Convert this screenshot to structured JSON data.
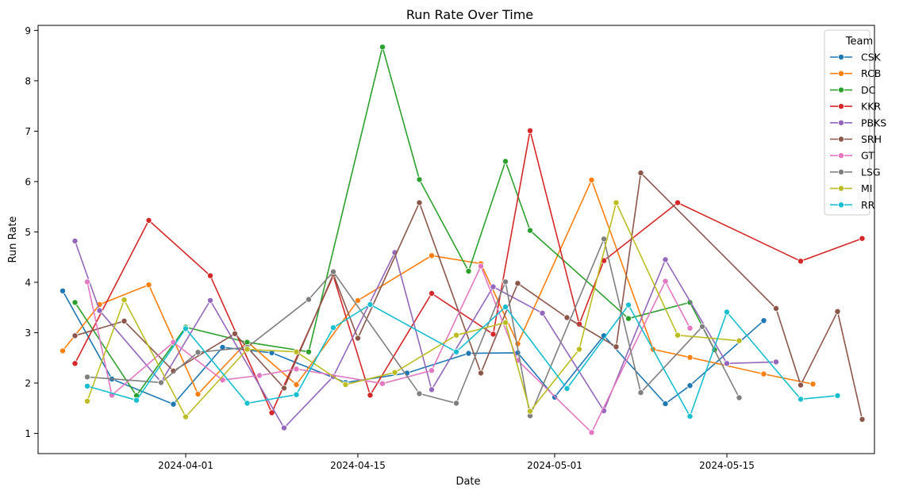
{
  "chart_data": {
    "type": "line",
    "title": "Run Rate Over Time",
    "xlabel": "Date",
    "ylabel": "Run Rate",
    "x_ticks": [
      "2024-04-01",
      "2024-04-15",
      "2024-05-01",
      "2024-05-15"
    ],
    "y_ticks": [
      "1",
      "2",
      "3",
      "4",
      "5",
      "6",
      "7",
      "8",
      "9"
    ],
    "xlim": [
      "2024-03-20",
      "2024-05-27"
    ],
    "ylim": [
      0.6,
      9.1
    ],
    "grid": false,
    "legend": {
      "title": "Team",
      "position": "top-right"
    },
    "series": [
      {
        "name": "CSK",
        "color": "#1f77b4",
        "points": [
          [
            "2024-03-22",
            3.83
          ],
          [
            "2024-03-26",
            2.08
          ],
          [
            "2024-03-31",
            1.58
          ],
          [
            "2024-04-04",
            2.71
          ],
          [
            "2024-04-08",
            2.6
          ],
          [
            "2024-04-14",
            2.01
          ],
          [
            "2024-04-19",
            2.2
          ],
          [
            "2024-04-24",
            2.59
          ],
          [
            "2024-04-28",
            2.6
          ],
          [
            "2024-05-01",
            1.72
          ],
          [
            "2024-05-05",
            2.94
          ],
          [
            "2024-05-10",
            1.59
          ],
          [
            "2024-05-12",
            1.95
          ],
          [
            "2024-05-18",
            3.24
          ]
        ]
      },
      {
        "name": "RCB",
        "color": "#ff7f0e",
        "points": [
          [
            "2024-03-22",
            2.64
          ],
          [
            "2024-03-25",
            3.56
          ],
          [
            "2024-03-29",
            3.95
          ],
          [
            "2024-04-02",
            1.78
          ],
          [
            "2024-04-06",
            2.82
          ],
          [
            "2024-04-10",
            1.97
          ],
          [
            "2024-04-15",
            3.64
          ],
          [
            "2024-04-21",
            4.53
          ],
          [
            "2024-04-25",
            4.37
          ],
          [
            "2024-04-28",
            2.78
          ],
          [
            "2024-05-04",
            6.03
          ],
          [
            "2024-05-09",
            2.67
          ],
          [
            "2024-05-12",
            2.51
          ],
          [
            "2024-05-18",
            2.18
          ],
          [
            "2024-05-22",
            1.98
          ]
        ]
      },
      {
        "name": "DC",
        "color": "#2ca02c",
        "points": [
          [
            "2024-03-23",
            3.6
          ],
          [
            "2024-03-28",
            1.75
          ],
          [
            "2024-04-01",
            3.11
          ],
          [
            "2024-04-06",
            2.81
          ],
          [
            "2024-04-11",
            2.62
          ],
          [
            "2024-04-17",
            8.67
          ],
          [
            "2024-04-20",
            6.04
          ],
          [
            "2024-04-24",
            4.22
          ],
          [
            "2024-04-27",
            6.4
          ],
          [
            "2024-04-29",
            5.03
          ],
          [
            "2024-05-07",
            3.28
          ],
          [
            "2024-05-12",
            3.6
          ],
          [
            "2024-05-14",
            2.66
          ]
        ]
      },
      {
        "name": "KKR",
        "color": "#d62728",
        "points": [
          [
            "2024-03-23",
            2.39
          ],
          [
            "2024-03-29",
            5.23
          ],
          [
            "2024-04-03",
            4.13
          ],
          [
            "2024-04-08",
            1.41
          ],
          [
            "2024-04-13",
            4.13
          ],
          [
            "2024-04-16",
            1.76
          ],
          [
            "2024-04-21",
            3.78
          ],
          [
            "2024-04-26",
            2.97
          ],
          [
            "2024-04-29",
            7.01
          ],
          [
            "2024-05-03",
            3.17
          ],
          [
            "2024-05-05",
            4.43
          ],
          [
            "2024-05-11",
            5.58
          ],
          [
            "2024-05-21",
            4.42
          ],
          [
            "2024-05-26",
            4.87
          ]
        ]
      },
      {
        "name": "PBKS",
        "color": "#9467bd",
        "points": [
          [
            "2024-03-23",
            4.82
          ],
          [
            "2024-03-25",
            3.44
          ],
          [
            "2024-03-30",
            2.02
          ],
          [
            "2024-04-03",
            3.64
          ],
          [
            "2024-04-09",
            1.11
          ],
          [
            "2024-04-13",
            2.13
          ],
          [
            "2024-04-18",
            4.59
          ],
          [
            "2024-04-21",
            1.87
          ],
          [
            "2024-04-26",
            3.91
          ],
          [
            "2024-04-30",
            3.39
          ],
          [
            "2024-05-05",
            1.45
          ],
          [
            "2024-05-10",
            4.45
          ],
          [
            "2024-05-15",
            2.39
          ],
          [
            "2024-05-19",
            2.42
          ]
        ]
      },
      {
        "name": "SRH",
        "color": "#8c564b",
        "points": [
          [
            "2024-03-23",
            2.94
          ],
          [
            "2024-03-27",
            3.23
          ],
          [
            "2024-03-31",
            2.24
          ],
          [
            "2024-04-05",
            2.98
          ],
          [
            "2024-04-09",
            1.9
          ],
          [
            "2024-04-13",
            4.16
          ],
          [
            "2024-04-15",
            2.89
          ],
          [
            "2024-04-20",
            5.58
          ],
          [
            "2024-04-25",
            2.2
          ],
          [
            "2024-04-28",
            3.98
          ],
          [
            "2024-05-02",
            3.3
          ],
          [
            "2024-05-06",
            2.72
          ],
          [
            "2024-05-08",
            6.17
          ],
          [
            "2024-05-19",
            3.48
          ],
          [
            "2024-05-21",
            1.96
          ],
          [
            "2024-05-24",
            3.42
          ],
          [
            "2024-05-26",
            1.28
          ]
        ]
      },
      {
        "name": "GT",
        "color": "#e377c2",
        "points": [
          [
            "2024-03-24",
            4.01
          ],
          [
            "2024-03-26",
            1.76
          ],
          [
            "2024-03-31",
            2.81
          ],
          [
            "2024-04-04",
            2.06
          ],
          [
            "2024-04-07",
            2.15
          ],
          [
            "2024-04-10",
            2.28
          ],
          [
            "2024-04-17",
            1.99
          ],
          [
            "2024-04-21",
            2.25
          ],
          [
            "2024-04-25",
            4.32
          ],
          [
            "2024-04-28",
            2.45
          ],
          [
            "2024-05-04",
            1.02
          ],
          [
            "2024-05-10",
            4.02
          ],
          [
            "2024-05-12",
            3.09
          ]
        ]
      },
      {
        "name": "LSG",
        "color": "#7f7f7f",
        "points": [
          [
            "2024-03-24",
            2.12
          ],
          [
            "2024-03-30",
            2.01
          ],
          [
            "2024-04-02",
            2.61
          ],
          [
            "2024-04-06",
            2.71
          ],
          [
            "2024-04-11",
            3.66
          ],
          [
            "2024-04-13",
            4.21
          ],
          [
            "2024-04-20",
            1.79
          ],
          [
            "2024-04-23",
            1.6
          ],
          [
            "2024-04-27",
            4.01
          ],
          [
            "2024-04-29",
            1.35
          ],
          [
            "2024-05-05",
            4.86
          ],
          [
            "2024-05-08",
            1.81
          ],
          [
            "2024-05-13",
            3.12
          ],
          [
            "2024-05-16",
            1.71
          ]
        ]
      },
      {
        "name": "MI",
        "color": "#bcbd22",
        "points": [
          [
            "2024-03-24",
            1.64
          ],
          [
            "2024-03-27",
            3.65
          ],
          [
            "2024-04-01",
            1.33
          ],
          [
            "2024-04-06",
            2.67
          ],
          [
            "2024-04-10",
            2.62
          ],
          [
            "2024-04-14",
            1.97
          ],
          [
            "2024-04-18",
            2.21
          ],
          [
            "2024-04-23",
            2.95
          ],
          [
            "2024-04-27",
            3.2
          ],
          [
            "2024-04-29",
            1.44
          ],
          [
            "2024-05-03",
            2.67
          ],
          [
            "2024-05-06",
            5.58
          ],
          [
            "2024-05-11",
            2.95
          ],
          [
            "2024-05-16",
            2.84
          ]
        ]
      },
      {
        "name": "RR",
        "color": "#17becf",
        "points": [
          [
            "2024-03-24",
            1.94
          ],
          [
            "2024-03-28",
            1.66
          ],
          [
            "2024-04-01",
            3.08
          ],
          [
            "2024-04-06",
            1.6
          ],
          [
            "2024-04-10",
            1.77
          ],
          [
            "2024-04-13",
            3.1
          ],
          [
            "2024-04-16",
            3.56
          ],
          [
            "2024-04-23",
            2.62
          ],
          [
            "2024-04-27",
            3.51
          ],
          [
            "2024-05-02",
            1.89
          ],
          [
            "2024-05-07",
            3.55
          ],
          [
            "2024-05-12",
            1.34
          ],
          [
            "2024-05-15",
            3.41
          ],
          [
            "2024-05-21",
            1.68
          ],
          [
            "2024-05-24",
            1.75
          ]
        ]
      }
    ]
  }
}
